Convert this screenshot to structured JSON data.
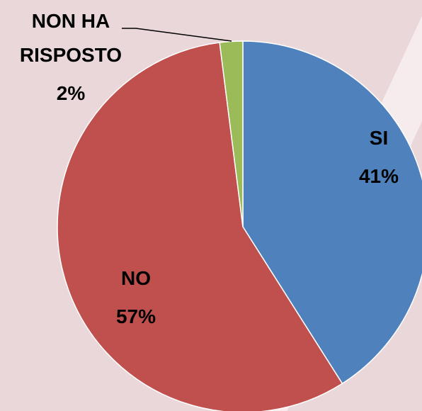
{
  "chart_data": {
    "type": "pie",
    "categories": [
      "SI",
      "NO",
      "NON HA RISPOSTO"
    ],
    "values": [
      41,
      57,
      2
    ],
    "value_labels": [
      "41%",
      "57%",
      "2%"
    ],
    "colors": [
      "#4f81bd",
      "#c0504d",
      "#9bbb59"
    ]
  }
}
